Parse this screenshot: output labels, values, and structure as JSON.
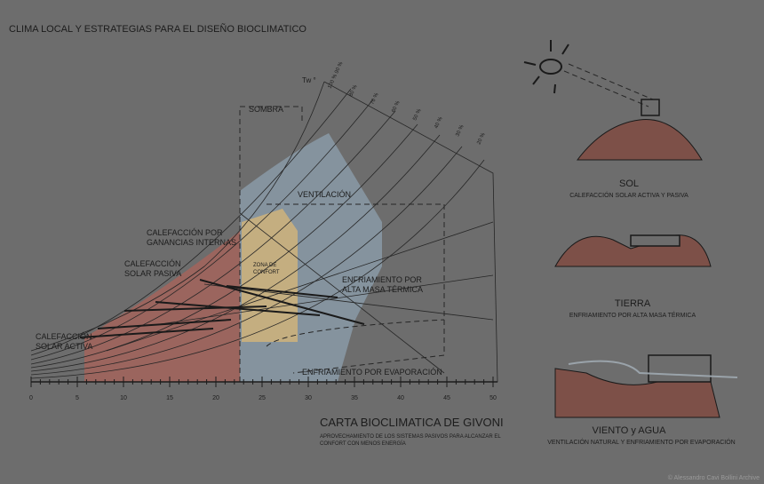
{
  "header": {
    "title": "CLIMA LOCAL Y ESTRATEGIAS PARA EL DISEÑO BIOCLIMATICO"
  },
  "chart": {
    "title": "CARTA BIOCLIMATICA DE GIVONI",
    "subtitle": [
      "APROVECHAMIENTO DE LOS SISTEMAS PASIVOS PARA ALCANZAR EL",
      "CONFORT CON MENOS ENERGÍA"
    ],
    "axis_label": "Tw °",
    "x_ticks": [
      "0",
      "5",
      "10",
      "15",
      "20",
      "25",
      "30",
      "35",
      "40",
      "45",
      "50"
    ],
    "rh_labels": [
      "100 % 90 %",
      "80 %",
      "70 %",
      "60 %",
      "50 %",
      "40 %",
      "30 %",
      "20 %"
    ],
    "zones": {
      "sombra": [
        "SOMBRA"
      ],
      "ventilacion": [
        "VENTILACIÓN"
      ],
      "ganancias": [
        "CALEFACCIÓN POR",
        "GANANCIAS INTERNAS"
      ],
      "solar_pasiva": [
        "CALEFACCIÓN",
        "SOLAR PASIVA"
      ],
      "solar_activa": [
        "CALEFACCIÓN",
        "SOLAR ACTIVA"
      ],
      "confort": [
        "ZONA DE",
        "CONFORT"
      ],
      "masa": [
        "ENFRIAMIENTO POR",
        "ALTA MASA TÉRMICA"
      ],
      "evaporacion": [
        "ENFRIAMIENTO POR EVAPORACIÓN"
      ]
    }
  },
  "panels": [
    {
      "title": "SOL",
      "caption": "CALEFACCIÓN SOLAR ACTIVA Y PASIVA"
    },
    {
      "title": "TIERRA",
      "caption": "ENFRIAMIENTO POR ALTA MASA TÉRMICA"
    },
    {
      "title": "VIENTO y AGUA",
      "caption": "VENTILACIÓN NATURAL Y ENFRIAMIENTO POR EVAPORACIÓN"
    }
  ],
  "credit": "© Alessandro Cavi Bollini Archive"
}
